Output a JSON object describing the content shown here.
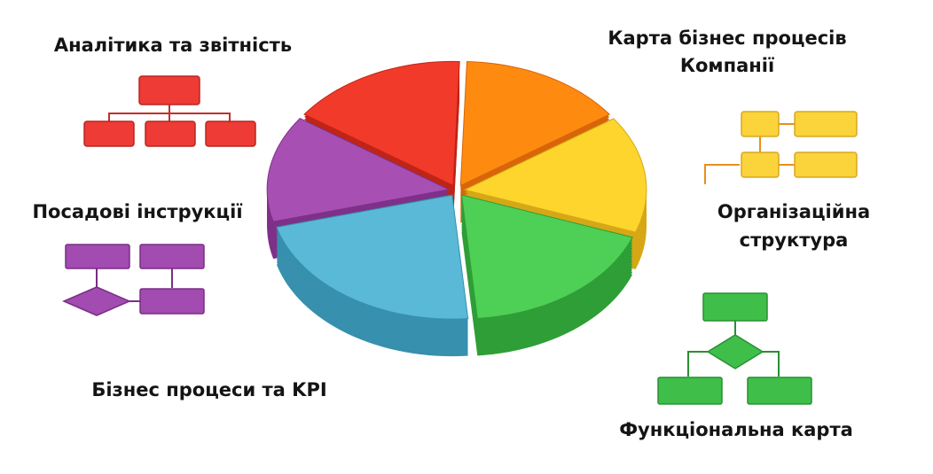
{
  "sections": [
    {
      "lines": [
        "Аналітика та звітність"
      ]
    },
    {
      "lines": [
        "Карта бізнес процесів",
        "Компанії"
      ]
    },
    {
      "lines": [
        "Посадові інструкції"
      ]
    },
    {
      "lines": [
        "Організаційна",
        "структура"
      ]
    },
    {
      "lines": [
        "Бізнес процеси та KPI"
      ]
    },
    {
      "lines": [
        "Функціональна карта"
      ]
    }
  ]
}
